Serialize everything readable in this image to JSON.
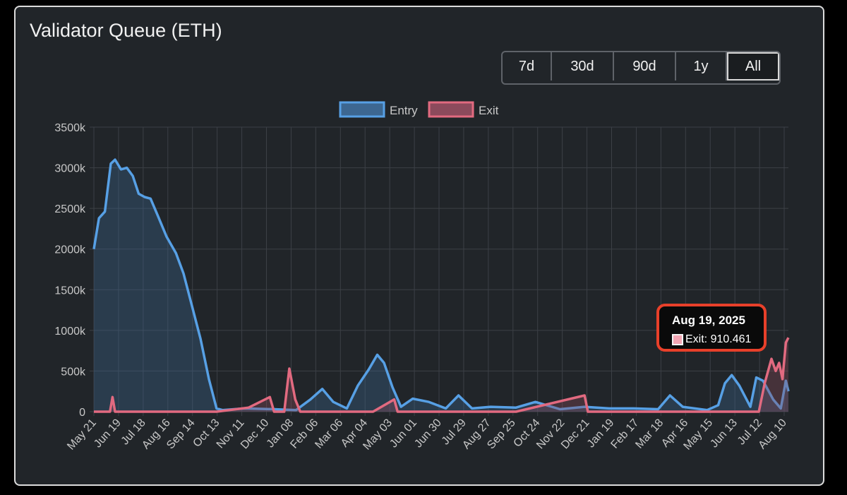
{
  "card": {
    "title": "Validator Queue (ETH)"
  },
  "range_buttons": [
    {
      "label": "7d",
      "active": false
    },
    {
      "label": "30d",
      "active": false
    },
    {
      "label": "90d",
      "active": false
    },
    {
      "label": "1y",
      "active": false
    },
    {
      "label": "All",
      "active": true
    }
  ],
  "tooltip": {
    "title": "Aug 19, 2025",
    "series": "Exit",
    "value_label": "Exit: 910.461"
  },
  "chart_data": {
    "type": "line",
    "title": "",
    "xlabel": "",
    "ylabel": "",
    "ylim": [
      0,
      3500000
    ],
    "yticks": [
      0,
      500000,
      1000000,
      1500000,
      2000000,
      2500000,
      3000000,
      3500000
    ],
    "ytick_labels": [
      "0",
      "500k",
      "1000k",
      "1500k",
      "2000k",
      "2500k",
      "3000k",
      "3500k"
    ],
    "x_tick_labels": [
      "May 21",
      "Jun 19",
      "Jul 18",
      "Aug 16",
      "Sep 14",
      "Oct 13",
      "Nov 11",
      "Dec 10",
      "Jan 08",
      "Feb 06",
      "Mar 06",
      "Apr 04",
      "May 03",
      "Jun 01",
      "Jun 30",
      "Jul 29",
      "Aug 27",
      "Sep 25",
      "Oct 24",
      "Nov 22",
      "Dec 21",
      "Jan 19",
      "Feb 17",
      "Mar 18",
      "Apr 16",
      "May 15",
      "Jun 13",
      "Jul 12",
      "Aug 10"
    ],
    "x_start": "2023-05-21",
    "x_end": "2025-08-19",
    "grid": true,
    "legend_position": "top",
    "series": [
      {
        "name": "Entry",
        "color": "#57a0e5",
        "fill": "#3d6791",
        "points": [
          [
            "2023-05-21",
            2000000
          ],
          [
            "2023-05-27",
            2380000
          ],
          [
            "2023-06-03",
            2460000
          ],
          [
            "2023-06-10",
            3050000
          ],
          [
            "2023-06-15",
            3100000
          ],
          [
            "2023-06-22",
            2980000
          ],
          [
            "2023-06-29",
            3000000
          ],
          [
            "2023-07-06",
            2900000
          ],
          [
            "2023-07-13",
            2680000
          ],
          [
            "2023-07-20",
            2640000
          ],
          [
            "2023-07-27",
            2620000
          ],
          [
            "2023-08-05",
            2400000
          ],
          [
            "2023-08-15",
            2150000
          ],
          [
            "2023-08-26",
            1950000
          ],
          [
            "2023-09-04",
            1700000
          ],
          [
            "2023-09-14",
            1300000
          ],
          [
            "2023-09-24",
            900000
          ],
          [
            "2023-10-04",
            400000
          ],
          [
            "2023-10-13",
            40000
          ],
          [
            "2023-10-20",
            20000
          ],
          [
            "2023-11-15",
            40000
          ],
          [
            "2023-12-20",
            30000
          ],
          [
            "2024-01-15",
            20000
          ],
          [
            "2024-02-01",
            150000
          ],
          [
            "2024-02-15",
            280000
          ],
          [
            "2024-02-28",
            120000
          ],
          [
            "2024-03-15",
            40000
          ],
          [
            "2024-03-28",
            320000
          ],
          [
            "2024-04-10",
            520000
          ],
          [
            "2024-04-20",
            700000
          ],
          [
            "2024-04-28",
            600000
          ],
          [
            "2024-05-08",
            300000
          ],
          [
            "2024-05-18",
            60000
          ],
          [
            "2024-06-01",
            160000
          ],
          [
            "2024-06-20",
            120000
          ],
          [
            "2024-07-10",
            40000
          ],
          [
            "2024-07-25",
            200000
          ],
          [
            "2024-08-10",
            40000
          ],
          [
            "2024-09-01",
            60000
          ],
          [
            "2024-10-01",
            50000
          ],
          [
            "2024-10-24",
            120000
          ],
          [
            "2024-11-22",
            30000
          ],
          [
            "2024-12-21",
            60000
          ],
          [
            "2025-01-19",
            40000
          ],
          [
            "2025-02-17",
            40000
          ],
          [
            "2025-03-18",
            30000
          ],
          [
            "2025-04-01",
            200000
          ],
          [
            "2025-04-16",
            60000
          ],
          [
            "2025-05-15",
            20000
          ],
          [
            "2025-05-28",
            80000
          ],
          [
            "2025-06-05",
            350000
          ],
          [
            "2025-06-13",
            450000
          ],
          [
            "2025-06-22",
            320000
          ],
          [
            "2025-07-05",
            60000
          ],
          [
            "2025-07-12",
            420000
          ],
          [
            "2025-07-20",
            380000
          ],
          [
            "2025-08-01",
            150000
          ],
          [
            "2025-08-10",
            40000
          ],
          [
            "2025-08-16",
            380000
          ],
          [
            "2025-08-19",
            250000
          ]
        ]
      },
      {
        "name": "Exit",
        "color": "#e26a80",
        "fill": "#8c4a5c",
        "points": [
          [
            "2023-05-21",
            0
          ],
          [
            "2023-06-09",
            0
          ],
          [
            "2023-06-12",
            180000
          ],
          [
            "2023-06-15",
            0
          ],
          [
            "2023-10-13",
            0
          ],
          [
            "2023-11-20",
            50000
          ],
          [
            "2023-12-15",
            180000
          ],
          [
            "2023-12-20",
            0
          ],
          [
            "2024-01-01",
            0
          ],
          [
            "2024-01-07",
            530000
          ],
          [
            "2024-01-14",
            150000
          ],
          [
            "2024-01-20",
            0
          ],
          [
            "2024-04-15",
            0
          ],
          [
            "2024-05-10",
            150000
          ],
          [
            "2024-05-14",
            0
          ],
          [
            "2024-10-01",
            0
          ],
          [
            "2024-12-21",
            200000
          ],
          [
            "2024-12-25",
            0
          ],
          [
            "2025-04-16",
            0
          ],
          [
            "2025-06-25",
            0
          ],
          [
            "2025-07-15",
            0
          ],
          [
            "2025-07-22",
            350000
          ],
          [
            "2025-07-30",
            650000
          ],
          [
            "2025-08-04",
            500000
          ],
          [
            "2025-08-08",
            600000
          ],
          [
            "2025-08-12",
            400000
          ],
          [
            "2025-08-16",
            850000
          ],
          [
            "2025-08-19",
            910461
          ]
        ]
      }
    ]
  }
}
